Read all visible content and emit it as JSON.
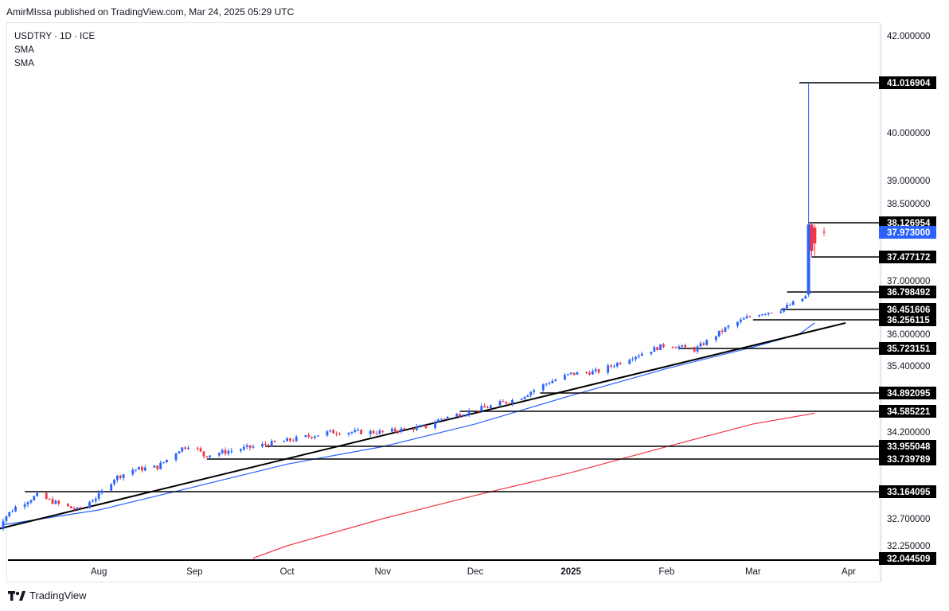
{
  "header": {
    "publish_text": "AmirMIssa published on TradingView.com, Mar 24, 2025 05:29 UTC"
  },
  "legend": {
    "symbol": "USDTRY · 1D · ICE",
    "ind1": "SMA",
    "ind2": "SMA"
  },
  "footer": {
    "brand": "TradingView"
  },
  "colors": {
    "up": "#2962ff",
    "down": "#f23645",
    "sma_fast": "#2962ff",
    "sma_slow": "#f23645",
    "levels": "#000000"
  },
  "chart_data": {
    "type": "candlestick",
    "symbol": "USDTRY",
    "interval": "1D",
    "y_ticks": [
      42.0,
      40.0,
      39.0,
      38.5,
      37.0,
      36.0,
      35.4,
      34.2,
      32.7,
      32.25
    ],
    "x_ticks": [
      {
        "label": "Aug",
        "date": "2024-08-01"
      },
      {
        "label": "Sep",
        "date": "2024-09-01"
      },
      {
        "label": "Oct",
        "date": "2024-10-01"
      },
      {
        "label": "Nov",
        "date": "2024-11-01"
      },
      {
        "label": "Dec",
        "date": "2024-12-01"
      },
      {
        "label": "2025",
        "date": "2025-01-01"
      },
      {
        "label": "Feb",
        "date": "2025-02-01"
      },
      {
        "label": "Mar",
        "date": "2025-03-01"
      },
      {
        "label": "Apr",
        "date": "2025-04-01"
      }
    ],
    "current_price": 37.973,
    "levels": [
      {
        "value": 41.016904,
        "start": "2025-03-16"
      },
      {
        "value": 38.126954,
        "start": "2025-03-19"
      },
      {
        "value": 37.477172,
        "start": "2025-03-20"
      },
      {
        "value": 36.798492,
        "start": "2025-03-12"
      },
      {
        "value": 36.451606,
        "start": "2025-03-10"
      },
      {
        "value": 36.256115,
        "start": "2025-03-01"
      },
      {
        "value": 35.723151,
        "start": "2025-02-05"
      },
      {
        "value": 34.892095,
        "start": "2024-12-22"
      },
      {
        "value": 34.585221,
        "start": "2024-11-26"
      },
      {
        "value": 33.955048,
        "start": "2024-09-24"
      },
      {
        "value": 33.739789,
        "start": "2024-09-05"
      },
      {
        "value": 33.164095,
        "start": "2024-07-08"
      },
      {
        "value": 32.044509,
        "start": "2024-06-27"
      }
    ],
    "trendline": [
      {
        "date": "2024-06-27",
        "value": 32.5
      },
      {
        "date": "2025-03-31",
        "value": 36.2
      }
    ],
    "sma_fast": [
      {
        "date": "2024-07-01",
        "value": 32.6
      },
      {
        "date": "2024-08-01",
        "value": 32.85
      },
      {
        "date": "2024-09-01",
        "value": 33.25
      },
      {
        "date": "2024-10-01",
        "value": 33.65
      },
      {
        "date": "2024-11-01",
        "value": 33.95
      },
      {
        "date": "2024-12-01",
        "value": 34.35
      },
      {
        "date": "2025-01-01",
        "value": 34.85
      },
      {
        "date": "2025-02-01",
        "value": 35.35
      },
      {
        "date": "2025-03-01",
        "value": 35.75
      },
      {
        "date": "2025-03-16",
        "value": 36.0
      },
      {
        "date": "2025-03-21",
        "value": 36.2
      }
    ],
    "sma_slow": [
      {
        "date": "2024-09-20",
        "value": 32.05
      },
      {
        "date": "2024-10-01",
        "value": 32.25
      },
      {
        "date": "2024-11-01",
        "value": 32.7
      },
      {
        "date": "2024-12-01",
        "value": 33.1
      },
      {
        "date": "2025-01-01",
        "value": 33.5
      },
      {
        "date": "2025-02-01",
        "value": 33.95
      },
      {
        "date": "2025-03-01",
        "value": 34.35
      },
      {
        "date": "2025-03-21",
        "value": 34.55
      }
    ],
    "close_path": [
      {
        "date": "2024-06-27",
        "value": 32.5
      },
      {
        "date": "2024-07-05",
        "value": 32.9
      },
      {
        "date": "2024-07-12",
        "value": 33.1
      },
      {
        "date": "2024-07-19",
        "value": 32.95
      },
      {
        "date": "2024-07-25",
        "value": 32.85
      },
      {
        "date": "2024-08-01",
        "value": 33.1
      },
      {
        "date": "2024-08-06",
        "value": 33.4
      },
      {
        "date": "2024-08-12",
        "value": 33.55
      },
      {
        "date": "2024-08-20",
        "value": 33.6
      },
      {
        "date": "2024-08-27",
        "value": 33.9
      },
      {
        "date": "2024-08-31",
        "value": 34.0
      },
      {
        "date": "2024-09-04",
        "value": 33.8
      },
      {
        "date": "2024-09-15",
        "value": 33.9
      },
      {
        "date": "2024-10-01",
        "value": 34.05
      },
      {
        "date": "2024-10-15",
        "value": 34.2
      },
      {
        "date": "2024-11-01",
        "value": 34.2
      },
      {
        "date": "2024-11-15",
        "value": 34.3
      },
      {
        "date": "2024-11-20",
        "value": 34.45
      },
      {
        "date": "2024-12-01",
        "value": 34.6
      },
      {
        "date": "2024-12-15",
        "value": 34.8
      },
      {
        "date": "2024-12-25",
        "value": 35.1
      },
      {
        "date": "2025-01-01",
        "value": 35.25
      },
      {
        "date": "2025-01-10",
        "value": 35.3
      },
      {
        "date": "2025-01-20",
        "value": 35.55
      },
      {
        "date": "2025-02-01",
        "value": 35.8
      },
      {
        "date": "2025-02-10",
        "value": 35.7
      },
      {
        "date": "2025-02-20",
        "value": 36.1
      },
      {
        "date": "2025-03-01",
        "value": 36.35
      },
      {
        "date": "2025-03-10",
        "value": 36.45
      },
      {
        "date": "2025-03-18",
        "value": 36.7
      }
    ],
    "final_candles": [
      {
        "date": "2025-03-19",
        "open": 36.75,
        "high": 41.016904,
        "low": 36.7,
        "close": 38.1
      },
      {
        "date": "2025-03-20",
        "open": 38.1,
        "high": 38.126954,
        "low": 37.48,
        "close": 37.6
      },
      {
        "date": "2025-03-21",
        "open": 38.05,
        "high": 38.1,
        "low": 37.5,
        "close": 37.75
      },
      {
        "date": "2025-03-24",
        "open": 37.98,
        "high": 38.05,
        "low": 37.9,
        "close": 37.973
      }
    ]
  }
}
